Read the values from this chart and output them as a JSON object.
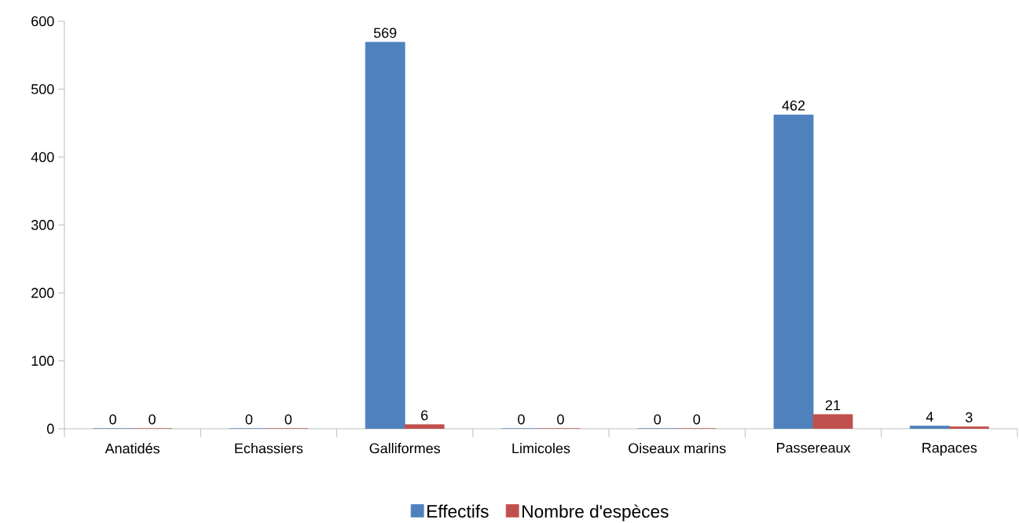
{
  "chart_data": {
    "type": "bar",
    "categories": [
      "Anatidés",
      "Echassiers",
      "Galliformes",
      "Limicoles",
      "Oiseaux marins",
      "Passereaux",
      "Rapaces"
    ],
    "series": [
      {
        "name": "Effectifs",
        "color": "#4f81bd",
        "values": [
          0,
          0,
          569,
          0,
          0,
          462,
          4
        ]
      },
      {
        "name": "Nombre d'espèces",
        "color": "#c0504d",
        "values": [
          0,
          0,
          6,
          0,
          0,
          21,
          3
        ]
      }
    ],
    "ylim": [
      0,
      600
    ],
    "yticks": [
      0,
      100,
      200,
      300,
      400,
      500,
      600
    ],
    "data_labels": true,
    "grid": false,
    "legend": "bottom"
  }
}
